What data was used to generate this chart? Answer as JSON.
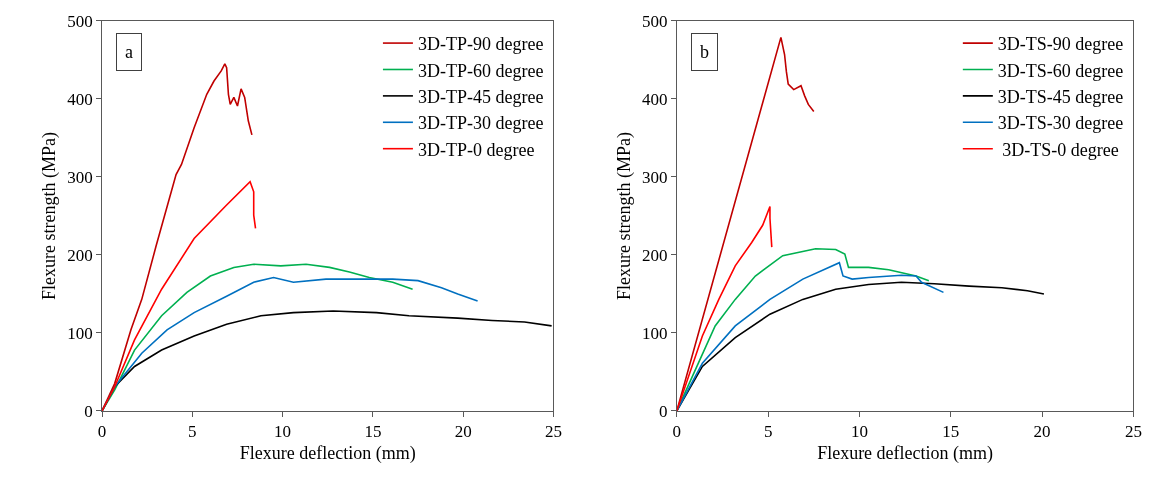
{
  "chart_data": [
    {
      "type": "line",
      "xlabel": "Flexure deflection (mm)",
      "ylabel": "Flexure strength (MPa)",
      "annotations": [
        "a"
      ],
      "legend": "top right",
      "xlim": [
        0,
        25
      ],
      "ylim": [
        0,
        500
      ],
      "xticks": [
        0,
        5,
        10,
        15,
        20,
        25
      ],
      "yticks": [
        0,
        100,
        200,
        300,
        400,
        500
      ],
      "series": [
        {
          "name": "3D-TP-90 degree",
          "color": "#c00000",
          "x": [
            0,
            0.7,
            1.6,
            2.2,
            3.0,
            4.1,
            4.4,
            5.1,
            5.8,
            6.2,
            6.6,
            6.8,
            6.9,
            7.0,
            7.1,
            7.3,
            7.5,
            7.7,
            7.9,
            8.1,
            8.3
          ],
          "values": [
            0,
            35,
            104,
            143,
            212,
            303,
            316,
            363,
            406,
            423,
            436,
            445,
            440,
            406,
            393,
            402,
            391,
            413,
            402,
            372,
            354
          ]
        },
        {
          "name": "3D-TP-60 degree",
          "color": "#00b050",
          "x": [
            0,
            0.7,
            1.8,
            3.3,
            4.7,
            6.0,
            7.3,
            8.4,
            9.9,
            11.3,
            12.6,
            13.7,
            14.8,
            16.1,
            17.2
          ],
          "values": [
            0,
            27,
            78,
            122,
            152,
            173,
            184,
            188,
            186,
            188,
            184,
            178,
            171,
            165,
            156
          ]
        },
        {
          "name": "3D-TP-45 degree",
          "color": "#000000",
          "x": [
            0,
            0.7,
            1.8,
            3.3,
            5.1,
            6.9,
            8.8,
            10.6,
            12.8,
            15.2,
            17.0,
            19.7,
            21.6,
            23.4,
            24.9
          ],
          "values": [
            0,
            31,
            57,
            78,
            96,
            111,
            122,
            126,
            128,
            126,
            122,
            119,
            116,
            114,
            109
          ]
        },
        {
          "name": "3D-TP-30 degree",
          "color": "#0070c0",
          "x": [
            0,
            0.7,
            2.2,
            3.6,
            5.1,
            6.9,
            8.4,
            9.5,
            10.6,
            12.4,
            14.3,
            16.1,
            17.5,
            18.8,
            19.7,
            20.8
          ],
          "values": [
            0,
            31,
            74,
            104,
            126,
            147,
            165,
            171,
            165,
            169,
            169,
            169,
            167,
            158,
            150,
            141
          ]
        },
        {
          "name": "3D-TP-0 degree",
          "color": "#ff0000",
          "x": [
            0,
            0.7,
            1.8,
            3.3,
            5.1,
            6.9,
            8.2,
            8.4,
            8.4,
            8.5
          ],
          "values": [
            0,
            31,
            91,
            156,
            221,
            264,
            294,
            281,
            251,
            234
          ]
        }
      ]
    },
    {
      "type": "line",
      "xlabel": "Flexure deflection (mm)",
      "ylabel": "Flexure strength (MPa)",
      "annotations": [
        "b"
      ],
      "legend": "top right",
      "xlim": [
        0,
        25
      ],
      "ylim": [
        0,
        500
      ],
      "xticks": [
        0,
        5,
        10,
        15,
        20,
        25
      ],
      "yticks": [
        0,
        100,
        200,
        300,
        400,
        500
      ],
      "series": [
        {
          "name": "3D-TS-90 degree",
          "color": "#c00000",
          "x": [
            0,
            5.7,
            5.9,
            6.0,
            6.1,
            6.4,
            6.8,
            7.0,
            7.2,
            7.5
          ],
          "values": [
            0,
            479,
            457,
            435,
            419,
            412,
            417,
            404,
            393,
            384
          ]
        },
        {
          "name": "3D-TS-60 degree",
          "color": "#00b050",
          "x": [
            0,
            1.1,
            2.1,
            3.2,
            4.3,
            5.8,
            7.6,
            8.7,
            9.2,
            9.4,
            10.5,
            11.6,
            13.1,
            13.8
          ],
          "values": [
            0,
            57,
            109,
            143,
            173,
            199,
            208,
            207,
            201,
            184,
            184,
            181,
            173,
            167
          ]
        },
        {
          "name": "3D-TS-45 degree",
          "color": "#000000",
          "x": [
            0,
            1.4,
            3.2,
            5.1,
            6.9,
            8.7,
            10.5,
            12.3,
            14.1,
            16.0,
            17.8,
            19.2,
            20.1
          ],
          "values": [
            0,
            57,
            94,
            124,
            143,
            156,
            162,
            165,
            163,
            160,
            158,
            154,
            150
          ]
        },
        {
          "name": "3D-TS-30 degree",
          "color": "#0070c0",
          "x": [
            0,
            1.4,
            3.2,
            5.1,
            6.9,
            8.9,
            9.1,
            9.6,
            10.5,
            12.3,
            13.1,
            13.4,
            14.6
          ],
          "values": [
            0,
            61,
            109,
            143,
            169,
            190,
            173,
            169,
            171,
            174,
            173,
            165,
            152
          ]
        },
        {
          "name": " 3D-TS-0 degree",
          "color": "#ff0000",
          "x": [
            0,
            1.4,
            2.3,
            3.2,
            4.1,
            4.7,
            5.1,
            5.1,
            5.2
          ],
          "values": [
            0,
            96,
            143,
            186,
            216,
            238,
            262,
            247,
            210
          ]
        }
      ]
    }
  ]
}
